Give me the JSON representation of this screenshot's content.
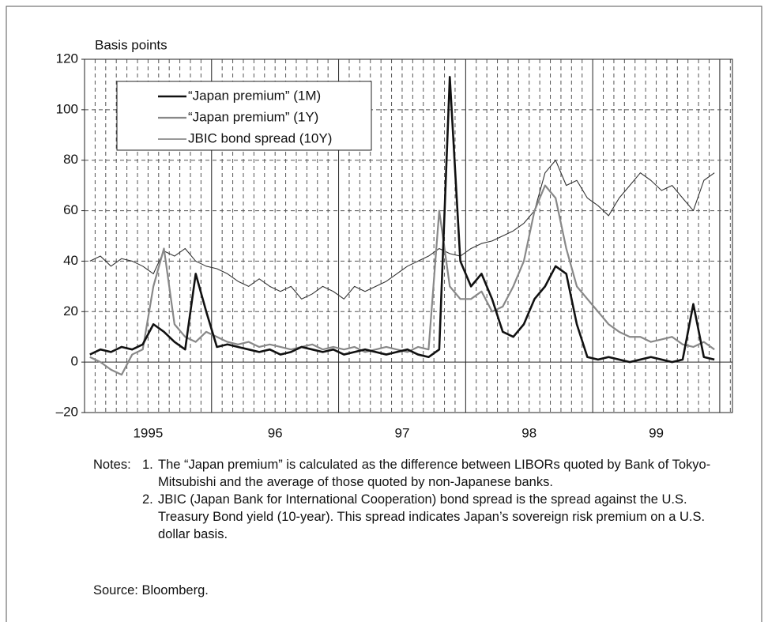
{
  "chart_data": {
    "type": "line",
    "y_label": "Basis points",
    "x": [
      1995.042,
      1995.125,
      1995.208,
      1995.292,
      1995.375,
      1995.458,
      1995.542,
      1995.625,
      1995.708,
      1995.792,
      1995.875,
      1995.958,
      1996.042,
      1996.125,
      1996.208,
      1996.292,
      1996.375,
      1996.458,
      1996.542,
      1996.625,
      1996.708,
      1996.792,
      1996.875,
      1996.958,
      1997.042,
      1997.125,
      1997.208,
      1997.292,
      1997.375,
      1997.458,
      1997.542,
      1997.625,
      1997.708,
      1997.792,
      1997.875,
      1997.958,
      1998.042,
      1998.125,
      1998.208,
      1998.292,
      1998.375,
      1998.458,
      1998.542,
      1998.625,
      1998.708,
      1998.792,
      1998.875,
      1998.958,
      1999.042,
      1999.125,
      1999.208,
      1999.292,
      1999.375,
      1999.458,
      1999.542,
      1999.625,
      1999.708,
      1999.792,
      1999.875,
      1999.958
    ],
    "series": [
      {
        "name": "“Japan premium” (1M)",
        "color": "#111111",
        "values": [
          3,
          5,
          4,
          6,
          5,
          7,
          15,
          12,
          8,
          5,
          35,
          20,
          6,
          7,
          6,
          5,
          4,
          5,
          3,
          4,
          6,
          5,
          4,
          5,
          3,
          4,
          5,
          4,
          3,
          4,
          5,
          3,
          2,
          5,
          113,
          40,
          30,
          35,
          25,
          12,
          10,
          15,
          25,
          30,
          38,
          35,
          15,
          2,
          1,
          2,
          1,
          0,
          1,
          2,
          1,
          0,
          1,
          23,
          2,
          1
        ]
      },
      {
        "name": "“Japan premium” (1Y)",
        "color": "#888888",
        "values": [
          2,
          0,
          -3,
          -5,
          3,
          5,
          30,
          45,
          15,
          10,
          8,
          12,
          10,
          8,
          7,
          8,
          6,
          7,
          6,
          5,
          6,
          7,
          5,
          6,
          5,
          6,
          4,
          5,
          6,
          5,
          4,
          6,
          5,
          60,
          30,
          25,
          25,
          28,
          20,
          22,
          30,
          40,
          60,
          70,
          65,
          45,
          30,
          25,
          20,
          15,
          12,
          10,
          10,
          8,
          9,
          10,
          7,
          6,
          8,
          5
        ]
      },
      {
        "name": "JBIC bond spread (10Y)",
        "color": "#333333",
        "values": [
          40,
          42,
          38,
          41,
          40,
          38,
          35,
          44,
          42,
          45,
          40,
          38,
          37,
          35,
          32,
          30,
          33,
          30,
          28,
          30,
          25,
          27,
          30,
          28,
          25,
          30,
          28,
          30,
          32,
          35,
          38,
          40,
          42,
          45,
          43,
          42,
          45,
          47,
          48,
          50,
          52,
          55,
          60,
          75,
          80,
          70,
          72,
          65,
          62,
          58,
          65,
          70,
          75,
          72,
          68,
          70,
          65,
          60,
          72,
          75
        ]
      }
    ],
    "xlim": [
      1995,
      2000.1
    ],
    "xticks": [
      {
        "value": 1995.5,
        "label": "1995"
      },
      {
        "value": 1996.5,
        "label": "96"
      },
      {
        "value": 1997.5,
        "label": "97"
      },
      {
        "value": 1998.5,
        "label": "98"
      },
      {
        "value": 1999.5,
        "label": "99"
      }
    ],
    "ylim": [
      -20,
      120
    ],
    "yticks": [
      {
        "value": -20,
        "label": "–20"
      },
      0,
      20,
      40,
      60,
      80,
      100,
      120
    ],
    "grid": true,
    "legend": "upper left"
  },
  "notes_label": "Notes:",
  "notes": [
    {
      "number": "1.",
      "text": "The “Japan premium” is calculated as the difference between LIBORs quoted by Bank of Tokyo-Mitsubishi and the average of those quoted by non-Japanese banks."
    },
    {
      "number": "2.",
      "text": "JBIC (Japan Bank for International Cooperation) bond spread is the spread against the U.S. Treasury Bond yield (10-year). This spread indicates Japan’s sovereign risk premium on a U.S. dollar basis."
    }
  ],
  "source": "Source: Bloomberg."
}
